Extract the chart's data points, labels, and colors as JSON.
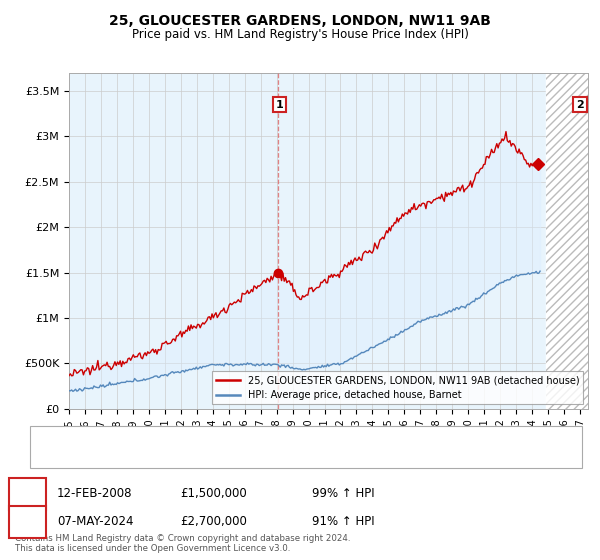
{
  "title": "25, GLOUCESTER GARDENS, LONDON, NW11 9AB",
  "subtitle": "Price paid vs. HM Land Registry's House Price Index (HPI)",
  "ylim": [
    0,
    3700000
  ],
  "yticks": [
    0,
    500000,
    1000000,
    1500000,
    2000000,
    2500000,
    3000000,
    3500000
  ],
  "ytick_labels": [
    "£0",
    "£500K",
    "£1M",
    "£1.5M",
    "£2M",
    "£2.5M",
    "£3M",
    "£3.5M"
  ],
  "red_line_color": "#cc0000",
  "blue_line_color": "#5588bb",
  "fill_color": "#ddeeff",
  "marker1_date": 2008.1,
  "marker1_price": 1500000,
  "marker2_date": 2024.37,
  "marker2_price": 2700000,
  "legend_line1": "25, GLOUCESTER GARDENS, LONDON, NW11 9AB (detached house)",
  "legend_line2": "HPI: Average price, detached house, Barnet",
  "footer": "Contains HM Land Registry data © Crown copyright and database right 2024.\nThis data is licensed under the Open Government Licence v3.0.",
  "xmin": 1995,
  "xmax": 2027.5,
  "hatch_start": 2024.9
}
